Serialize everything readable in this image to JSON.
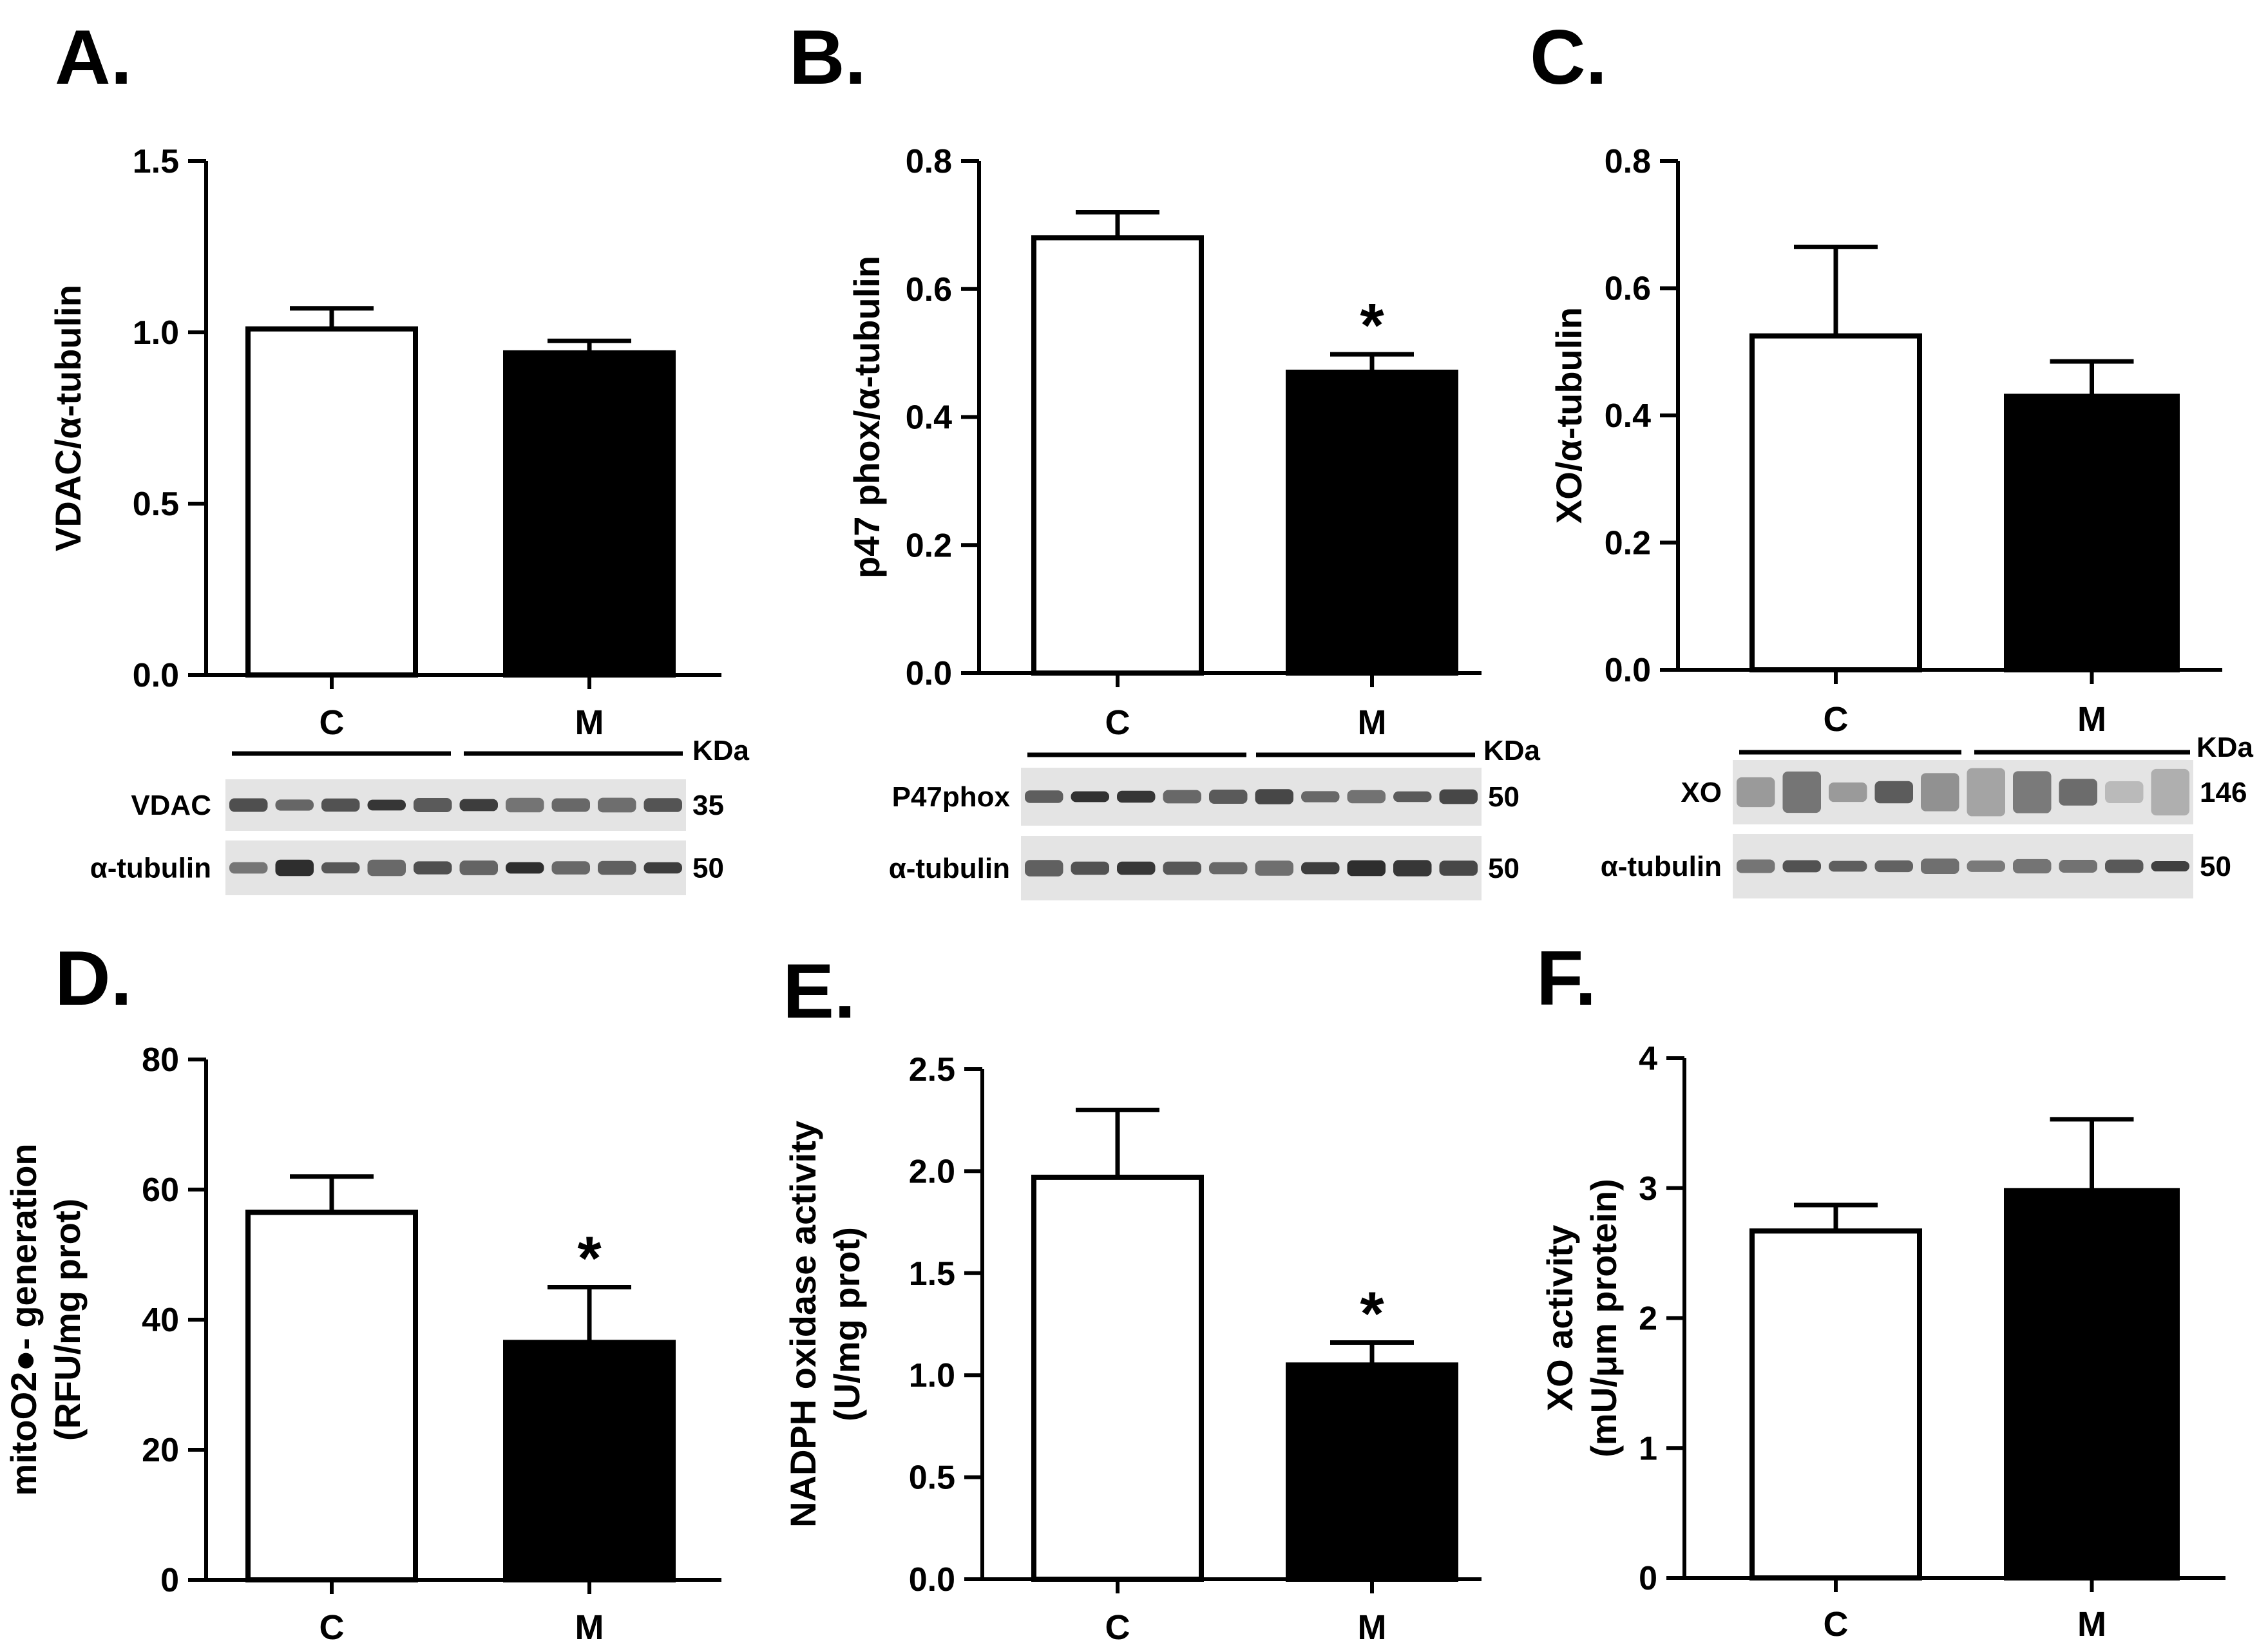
{
  "panels": [
    {
      "letter": "A.",
      "ylabel": [
        "VDAC/α-tubulin"
      ],
      "ticks": [
        "0.0",
        "0.5",
        "1.0",
        "1.5"
      ],
      "chart": {
        "type": "bar",
        "categories": [
          "C",
          "M"
        ],
        "values": [
          1.01,
          0.94
        ],
        "errors": [
          0.06,
          0.035
        ],
        "ylim": [
          0,
          1.5
        ],
        "colors": [
          "#ffffff",
          "#000000"
        ],
        "significant": [
          false,
          false
        ]
      },
      "blot": {
        "groups": [
          "C",
          "M"
        ],
        "unit": "KDa",
        "rows": [
          {
            "label": "VDAC",
            "kda": "35"
          },
          {
            "label": "α-tubulin",
            "kda": "50"
          }
        ]
      }
    },
    {
      "letter": "B.",
      "ylabel": [
        "p47 phox/α-tubulin"
      ],
      "ticks": [
        "0.0",
        "0.2",
        "0.4",
        "0.6",
        "0.8"
      ],
      "chart": {
        "type": "bar",
        "categories": [
          "C",
          "M"
        ],
        "values": [
          0.68,
          0.47
        ],
        "errors": [
          0.04,
          0.028
        ],
        "ylim": [
          0,
          0.8
        ],
        "colors": [
          "#ffffff",
          "#000000"
        ],
        "significant": [
          false,
          true
        ]
      },
      "blot": {
        "groups": [
          "C",
          "M"
        ],
        "unit": "KDa",
        "rows": [
          {
            "label": "P47phox",
            "kda": "50"
          },
          {
            "label": "α-tubulin",
            "kda": "50"
          }
        ]
      }
    },
    {
      "letter": "C.",
      "ylabel": [
        "XO/α-tubulin"
      ],
      "ticks": [
        "0.0",
        "0.2",
        "0.4",
        "0.6",
        "0.8"
      ],
      "chart": {
        "type": "bar",
        "categories": [
          "C",
          "M"
        ],
        "values": [
          0.525,
          0.43
        ],
        "errors": [
          0.14,
          0.055
        ],
        "ylim": [
          0,
          0.8
        ],
        "colors": [
          "#ffffff",
          "#000000"
        ],
        "significant": [
          false,
          false
        ]
      },
      "blot": {
        "groups": [
          "C",
          "M"
        ],
        "unit": "KDa",
        "rows": [
          {
            "label": "XO",
            "kda": "146"
          },
          {
            "label": "α-tubulin",
            "kda": "50"
          }
        ]
      }
    },
    {
      "letter": "D.",
      "ylabel": [
        "mitoO2●- generation",
        "(RFU/mg prot)"
      ],
      "ticks": [
        "0",
        "20",
        "40",
        "60",
        "80"
      ],
      "chart": {
        "type": "bar",
        "categories": [
          "C",
          "M"
        ],
        "values": [
          56.5,
          36.5
        ],
        "errors": [
          5.5,
          8.5
        ],
        "ylim": [
          0,
          80
        ],
        "colors": [
          "#ffffff",
          "#000000"
        ],
        "significant": [
          false,
          true
        ]
      }
    },
    {
      "letter": "E.",
      "ylabel": [
        "NADPH oxidase activity",
        "(U/mg prot)"
      ],
      "ticks": [
        "0.0",
        "0.5",
        "1.0",
        "1.5",
        "2.0",
        "2.5"
      ],
      "chart": {
        "type": "bar",
        "categories": [
          "C",
          "M"
        ],
        "values": [
          1.97,
          1.05
        ],
        "errors": [
          0.33,
          0.11
        ],
        "ylim": [
          0,
          2.5
        ],
        "colors": [
          "#ffffff",
          "#000000"
        ],
        "significant": [
          false,
          true
        ]
      }
    },
    {
      "letter": "F.",
      "ylabel": [
        "XO activity",
        "(mU/μm protein)"
      ],
      "ticks": [
        "0",
        "1",
        "2",
        "3",
        "4"
      ],
      "chart": {
        "type": "bar",
        "categories": [
          "C",
          "M"
        ],
        "values": [
          2.67,
          2.98
        ],
        "errors": [
          0.2,
          0.55
        ],
        "ylim": [
          0,
          4
        ],
        "colors": [
          "#ffffff",
          "#000000"
        ],
        "significant": [
          false,
          false
        ]
      }
    }
  ],
  "significance_marker": "*"
}
